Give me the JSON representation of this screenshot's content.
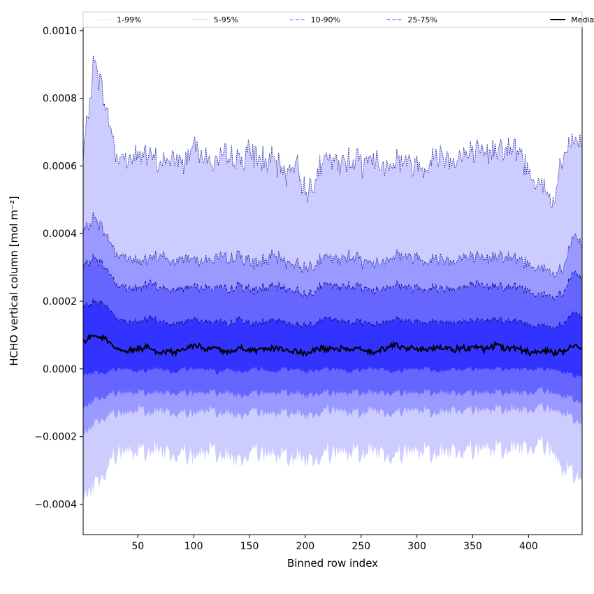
{
  "chart_data": {
    "type": "area",
    "title": "",
    "xlabel": "Binned row index",
    "ylabel": "HCHO vertical column [mol m⁻²]",
    "xlim": [
      1,
      448
    ],
    "ylim": [
      -0.00049,
      0.00101
    ],
    "x_ticks": [
      {
        "value": 50,
        "label": "50"
      },
      {
        "value": 100,
        "label": "100"
      },
      {
        "value": 150,
        "label": "150"
      },
      {
        "value": 200,
        "label": "200"
      },
      {
        "value": 250,
        "label": "250"
      },
      {
        "value": 300,
        "label": "300"
      },
      {
        "value": 350,
        "label": "350"
      },
      {
        "value": 400,
        "label": "400"
      }
    ],
    "y_ticks": [
      {
        "value": -0.0004,
        "label": "−0.0004"
      },
      {
        "value": -0.0002,
        "label": "−0.0002"
      },
      {
        "value": 0.0,
        "label": "0.0000"
      },
      {
        "value": 0.0002,
        "label": "0.0002"
      },
      {
        "value": 0.0004,
        "label": "0.0004"
      },
      {
        "value": 0.0006,
        "label": "0.0006"
      },
      {
        "value": 0.0008,
        "label": "0.0008"
      },
      {
        "value": 0.001,
        "label": "0.0010"
      }
    ],
    "grid": false,
    "legend_position": "top",
    "legend": [
      {
        "label": "1-99%",
        "color": "#ccccff",
        "dash": "dotted"
      },
      {
        "label": "5-95%",
        "color": "#9999ff",
        "dash": "dotted"
      },
      {
        "label": "10-90%",
        "color": "#6666ff",
        "dash": "dashed"
      },
      {
        "label": "25-75%",
        "color": "#3333ff",
        "dash": "dashed"
      },
      {
        "label": "Median",
        "color": "#000000",
        "dash": "solid"
      }
    ],
    "x": [
      1,
      11,
      21,
      31,
      41,
      51,
      61,
      71,
      81,
      91,
      101,
      111,
      121,
      131,
      141,
      151,
      161,
      171,
      181,
      191,
      201,
      211,
      221,
      231,
      241,
      251,
      261,
      271,
      281,
      291,
      301,
      311,
      321,
      331,
      341,
      351,
      361,
      371,
      381,
      391,
      401,
      411,
      421,
      431,
      441,
      448
    ],
    "series": [
      {
        "name": "1-99%",
        "color": "#ccccff",
        "upper": [
          0.00062,
          0.00092,
          0.00078,
          0.00063,
          0.00062,
          0.00064,
          0.00062,
          0.00061,
          0.00062,
          0.00061,
          0.00068,
          0.00062,
          0.00061,
          0.00063,
          0.00062,
          0.00064,
          0.00062,
          0.00061,
          0.00058,
          0.00061,
          0.00052,
          0.00059,
          0.00062,
          0.0006,
          0.00063,
          0.00061,
          0.00062,
          0.0006,
          0.00062,
          0.00061,
          0.0006,
          0.00061,
          0.00064,
          0.00062,
          0.00063,
          0.00064,
          0.00063,
          0.00066,
          0.00065,
          0.00064,
          0.00058,
          0.00055,
          0.00048,
          0.00062,
          0.00068,
          0.00066
        ],
        "lower": [
          -0.00039,
          -0.00034,
          -0.0003,
          -0.00025,
          -0.00024,
          -0.00025,
          -0.00024,
          -0.00024,
          -0.00025,
          -0.00025,
          -0.00026,
          -0.00024,
          -0.00025,
          -0.00026,
          -0.00027,
          -0.00024,
          -0.00025,
          -0.00025,
          -0.00026,
          -0.00026,
          -0.00027,
          -0.00026,
          -0.00025,
          -0.00024,
          -0.00025,
          -0.00025,
          -0.00024,
          -0.00025,
          -0.00026,
          -0.00024,
          -0.00024,
          -0.00025,
          -0.00025,
          -0.00024,
          -0.00024,
          -0.00024,
          -0.00023,
          -0.00024,
          -0.00024,
          -0.00023,
          -0.00023,
          -0.00022,
          -0.00024,
          -0.0003,
          -0.00031,
          -0.00032
        ]
      },
      {
        "name": "5-95%",
        "color": "#9999ff",
        "upper": [
          0.0004,
          0.00045,
          0.0004,
          0.00034,
          0.00033,
          0.00032,
          0.00032,
          0.00034,
          0.00031,
          0.00033,
          0.00033,
          0.00032,
          0.00033,
          0.00032,
          0.00034,
          0.00031,
          0.00032,
          0.00033,
          0.00032,
          0.00031,
          0.0003,
          0.00032,
          0.00033,
          0.00032,
          0.00034,
          0.00032,
          0.00031,
          0.00032,
          0.00034,
          0.00033,
          0.00033,
          0.00032,
          0.00033,
          0.00032,
          0.00033,
          0.00033,
          0.00032,
          0.00034,
          0.00033,
          0.00032,
          0.00031,
          0.0003,
          0.00028,
          0.00029,
          0.0004,
          0.00036
        ],
        "lower": [
          -0.0002,
          -0.00016,
          -0.00014,
          -0.00013,
          -0.00013,
          -0.00012,
          -0.00013,
          -0.00012,
          -0.00013,
          -0.00013,
          -0.00013,
          -0.00012,
          -0.00013,
          -0.00013,
          -0.00014,
          -0.00012,
          -0.00013,
          -0.00013,
          -0.00013,
          -0.00013,
          -0.00014,
          -0.00013,
          -0.00012,
          -0.00012,
          -0.00013,
          -0.00013,
          -0.00012,
          -0.00013,
          -0.00013,
          -0.00012,
          -0.00012,
          -0.00013,
          -0.00013,
          -0.00012,
          -0.00012,
          -0.00012,
          -0.00012,
          -0.00012,
          -0.00012,
          -0.00012,
          -0.00012,
          -0.00011,
          -0.00012,
          -0.00013,
          -0.00015,
          -0.00016
        ]
      },
      {
        "name": "10-90%",
        "color": "#6666ff",
        "upper": [
          0.0003,
          0.00033,
          0.0003,
          0.00025,
          0.00024,
          0.00024,
          0.00025,
          0.00024,
          0.00023,
          0.00024,
          0.00025,
          0.00024,
          0.00024,
          0.00023,
          0.00025,
          0.00023,
          0.00024,
          0.00024,
          0.00024,
          0.00023,
          0.00022,
          0.00024,
          0.00025,
          0.00024,
          0.00025,
          0.00024,
          0.00023,
          0.00024,
          0.00025,
          0.00024,
          0.00024,
          0.00024,
          0.00024,
          0.00024,
          0.00024,
          0.00025,
          0.00024,
          0.00025,
          0.00024,
          0.00024,
          0.00023,
          0.00022,
          0.00021,
          0.00022,
          0.00029,
          0.00026
        ],
        "lower": [
          -0.00012,
          -9e-05,
          -8e-05,
          -7e-05,
          -7e-05,
          -7e-05,
          -7e-05,
          -7e-05,
          -7e-05,
          -7e-05,
          -7e-05,
          -7e-05,
          -7e-05,
          -7e-05,
          -8e-05,
          -7e-05,
          -7e-05,
          -7e-05,
          -7e-05,
          -7e-05,
          -8e-05,
          -7e-05,
          -7e-05,
          -7e-05,
          -7e-05,
          -7e-05,
          -7e-05,
          -7e-05,
          -7e-05,
          -7e-05,
          -7e-05,
          -7e-05,
          -7e-05,
          -7e-05,
          -7e-05,
          -7e-05,
          -7e-05,
          -7e-05,
          -7e-05,
          -7e-05,
          -7e-05,
          -6e-05,
          -7e-05,
          -8e-05,
          -9e-05,
          -0.0001
        ]
      },
      {
        "name": "25-75%",
        "color": "#3333ff",
        "upper": [
          0.00018,
          0.0002,
          0.00019,
          0.00015,
          0.00014,
          0.00014,
          0.00015,
          0.00014,
          0.00013,
          0.00014,
          0.00015,
          0.00014,
          0.00014,
          0.00013,
          0.00015,
          0.00013,
          0.00014,
          0.00014,
          0.00014,
          0.00013,
          0.00013,
          0.00014,
          0.00015,
          0.00014,
          0.00014,
          0.00014,
          0.00013,
          0.00014,
          0.00015,
          0.00014,
          0.00014,
          0.00014,
          0.00014,
          0.00014,
          0.00014,
          0.00014,
          0.00014,
          0.00015,
          0.00014,
          0.00014,
          0.00013,
          0.00013,
          0.00012,
          0.00013,
          0.00017,
          0.00015
        ],
        "lower": [
          -2e-05,
          -1e-05,
          -1e-05,
          0.0,
          0.0,
          -1e-05,
          0.0,
          0.0,
          -1e-05,
          0.0,
          0.0,
          0.0,
          -1e-05,
          0.0,
          -1e-05,
          0.0,
          0.0,
          -1e-05,
          0.0,
          0.0,
          -1e-05,
          0.0,
          0.0,
          0.0,
          -1e-05,
          0.0,
          0.0,
          0.0,
          -1e-05,
          0.0,
          0.0,
          0.0,
          -1e-05,
          0.0,
          0.0,
          0.0,
          0.0,
          0.0,
          0.0,
          0.0,
          0.0,
          0.0,
          0.0,
          -1e-05,
          -2e-05,
          -2e-05
        ]
      },
      {
        "name": "Median",
        "color": "#000000",
        "values": [
          8e-05,
          0.0001,
          9e-05,
          6e-05,
          5e-05,
          6e-05,
          6e-05,
          5e-05,
          5e-05,
          6e-05,
          7e-05,
          6e-05,
          6e-05,
          5e-05,
          6e-05,
          5e-05,
          6e-05,
          6e-05,
          6e-05,
          5e-05,
          5e-05,
          6e-05,
          6e-05,
          6e-05,
          6e-05,
          6e-05,
          5e-05,
          6e-05,
          7e-05,
          6e-05,
          6e-05,
          6e-05,
          6e-05,
          6e-05,
          6e-05,
          6e-05,
          6e-05,
          7e-05,
          6e-05,
          6e-05,
          5e-05,
          5e-05,
          5e-05,
          5e-05,
          7e-05,
          6e-05
        ]
      }
    ]
  }
}
